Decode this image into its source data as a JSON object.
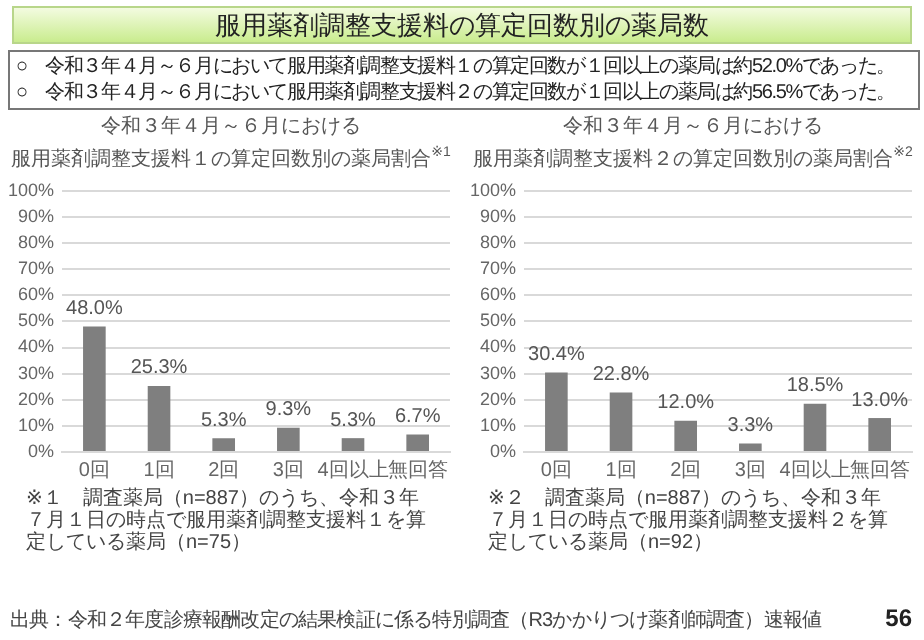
{
  "chart_data": [
    {
      "type": "other",
      "title": "服用薬剤調整支援料の算定回数別の薬局数",
      "annotations": [
        "○　令和３年４月～６月において服用薬剤調整支援料１の算定回数が１回以上の薬局は約52.0%であった。",
        "○　令和３年４月～６月において服用薬剤調整支援料２の算定回数が１回以上の薬局は約56.5%であった。",
        "出典：令和２年度診療報酬改定の結果検証に係る特別調査（R3かかりつけ薬剤師調査）速報値",
        "56"
      ]
    },
    {
      "type": "bar",
      "title": "令和３年４月～６月における",
      "subtitle": "服用薬剤調整支援料１の算定回数別の薬局割合$^{※1}$",
      "categories": [
        "0回",
        "1回",
        "2回",
        "3回",
        "4回以上",
        "無回答"
      ],
      "values": [
        48.0,
        25.3,
        5.3,
        9.3,
        5.3,
        6.7
      ],
      "value_labels": [
        "48.0%",
        "25.3%",
        "5.3%",
        "9.3%",
        "5.3%",
        "6.7%"
      ],
      "color": "#7f7f7f",
      "ylim": [
        0,
        100
      ],
      "yticks": [
        {
          "value": 0,
          "label": "0%"
        },
        {
          "value": 10,
          "label": "10%"
        },
        {
          "value": 20,
          "label": "20%"
        },
        {
          "value": 30,
          "label": "30%"
        },
        {
          "value": 40,
          "label": "40%"
        },
        {
          "value": 50,
          "label": "50%"
        },
        {
          "value": 60,
          "label": "60%"
        },
        {
          "value": 70,
          "label": "70%"
        },
        {
          "value": 80,
          "label": "80%"
        },
        {
          "value": 90,
          "label": "90%"
        },
        {
          "value": 100,
          "label": "100%"
        }
      ],
      "grid": "y",
      "annotations": [
        "※１　調査薬局（n=887）のうち、令和３年７月１日の時点で服用薬剤調整支援料１を算定している薬局（n=75）"
      ]
    },
    {
      "type": "bar",
      "title": "令和３年４月～６月における",
      "subtitle": "服用薬剤調整支援料２の算定回数別の薬局割合$^{※2}$",
      "categories": [
        "0回",
        "1回",
        "2回",
        "3回",
        "4回以上",
        "無回答"
      ],
      "values": [
        30.4,
        22.8,
        12.0,
        3.3,
        18.5,
        13.0
      ],
      "value_labels": [
        "30.4%",
        "22.8%",
        "12.0%",
        "3.3%",
        "18.5%",
        "13.0%"
      ],
      "color": "#7f7f7f",
      "ylim": [
        0,
        100
      ],
      "yticks": [
        {
          "value": 0,
          "label": "0%"
        },
        {
          "value": 10,
          "label": "10%"
        },
        {
          "value": 20,
          "label": "20%"
        },
        {
          "value": 30,
          "label": "30%"
        },
        {
          "value": 40,
          "label": "40%"
        },
        {
          "value": 50,
          "label": "50%"
        },
        {
          "value": 60,
          "label": "60%"
        },
        {
          "value": 70,
          "label": "70%"
        },
        {
          "value": 80,
          "label": "80%"
        },
        {
          "value": 90,
          "label": "90%"
        },
        {
          "value": 100,
          "label": "100%"
        }
      ],
      "grid": "y",
      "annotations": [
        "※２　調査薬局（n=887）のうち、令和３年７月１日の時点で服用薬剤調整支援料２を算定している薬局（n=92）"
      ]
    }
  ]
}
